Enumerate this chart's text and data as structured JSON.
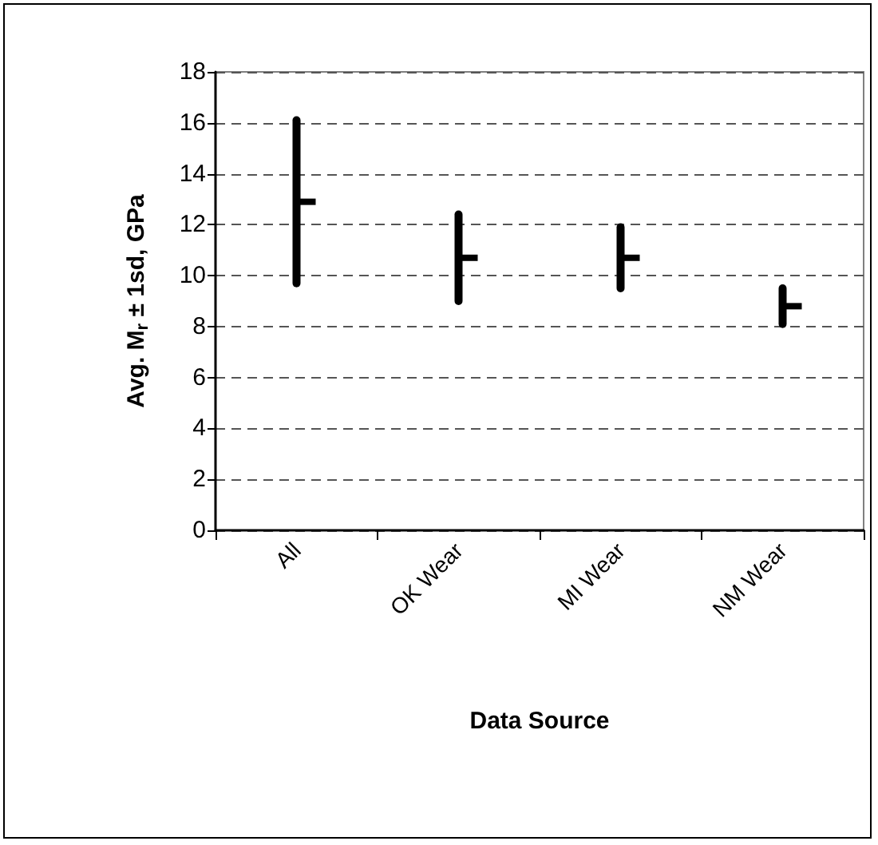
{
  "chart_data": {
    "type": "scatter",
    "xlabel": "Data Source",
    "ylabel": "Avg. M$_{r}$ ± 1sd, GPa",
    "categories": [
      "All",
      "OK Wear",
      "MI Wear",
      "NM Wear"
    ],
    "values": [
      12.9,
      10.7,
      10.7,
      8.8
    ],
    "errors": [
      3.2,
      1.7,
      1.2,
      0.7
    ],
    "color": "#000000",
    "ylim": [
      0,
      18
    ],
    "yticks": [
      0,
      2,
      4,
      6,
      8,
      10,
      12,
      14,
      16,
      18
    ],
    "grid": "y"
  }
}
